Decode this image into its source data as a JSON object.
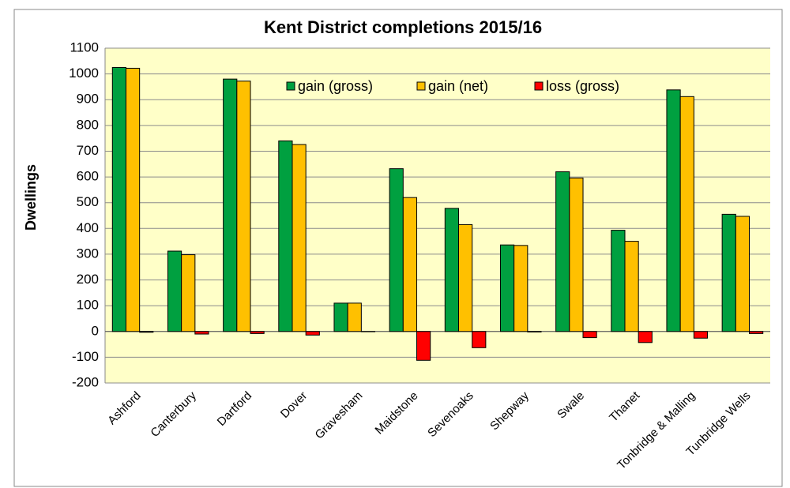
{
  "chart_data": {
    "type": "bar",
    "title": "Kent District completions 2015/16",
    "y_label": "Dwellings",
    "categories": [
      "Ashford",
      "Canterbury",
      "Dartford",
      "Dover",
      "Gravesham",
      "Maidstone",
      "Sevenoaks",
      "Shepway",
      "Swale",
      "Thanet",
      "Tonbridge & Malling",
      "Tunbridge Wells"
    ],
    "series": [
      {
        "name": "gain (gross)",
        "color": "#00a040",
        "values": [
          1025,
          312,
          980,
          740,
          110,
          632,
          478,
          336,
          620,
          393,
          938,
          455
        ]
      },
      {
        "name": "gain (net)",
        "color": "#ffc000",
        "values": [
          1022,
          298,
          972,
          726,
          110,
          520,
          415,
          334,
          596,
          350,
          912,
          447
        ]
      },
      {
        "name": "loss (gross)",
        "color": "#ff0000",
        "values": [
          -3,
          -10,
          -8,
          -14,
          -1,
          -112,
          -63,
          -2,
          -24,
          -43,
          -26,
          -8
        ]
      }
    ],
    "ylim": [
      -200,
      1100
    ],
    "yticks": [
      -200,
      -100,
      0,
      100,
      200,
      300,
      400,
      500,
      600,
      700,
      800,
      900,
      1000,
      1100
    ],
    "grid": true,
    "legend": "top"
  }
}
